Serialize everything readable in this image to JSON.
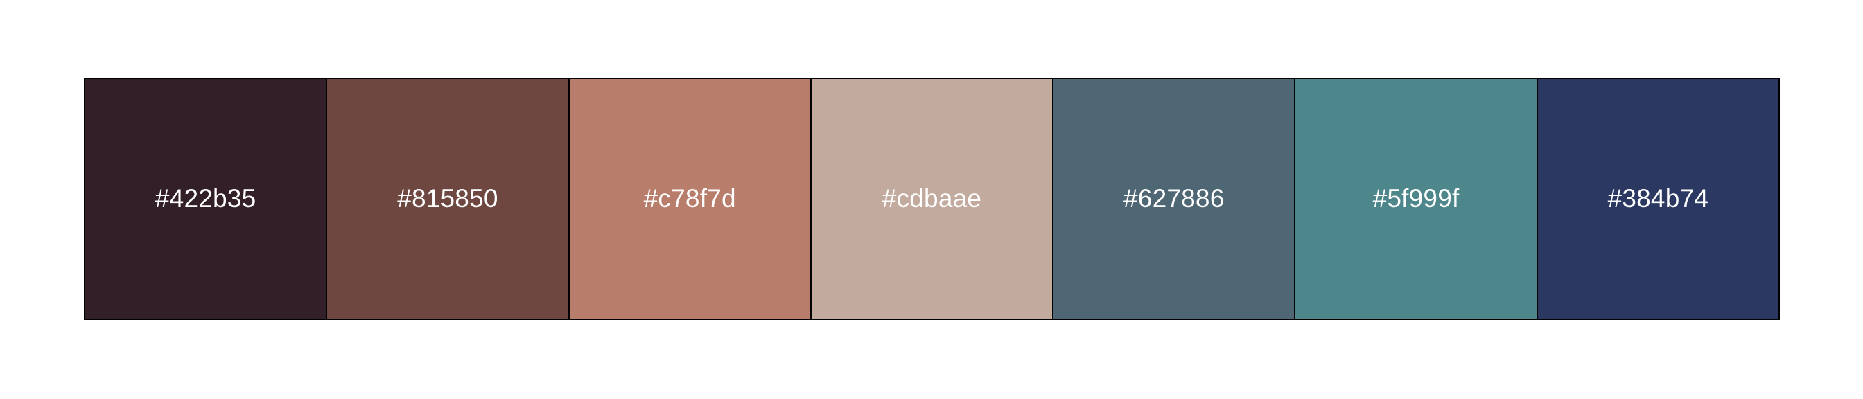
{
  "palette": {
    "swatches": [
      {
        "label": "#422b35",
        "color": "#331f27"
      },
      {
        "label": "#815850",
        "color": "#6d4740"
      },
      {
        "label": "#c78f7d",
        "color": "#b97d6c"
      },
      {
        "label": "#cdbaae",
        "color": "#c2ab9e"
      },
      {
        "label": "#627886",
        "color": "#4f6675"
      },
      {
        "label": "#5f999f",
        "color": "#4d878c"
      },
      {
        "label": "#384b74",
        "color": "#2b3962"
      }
    ]
  }
}
